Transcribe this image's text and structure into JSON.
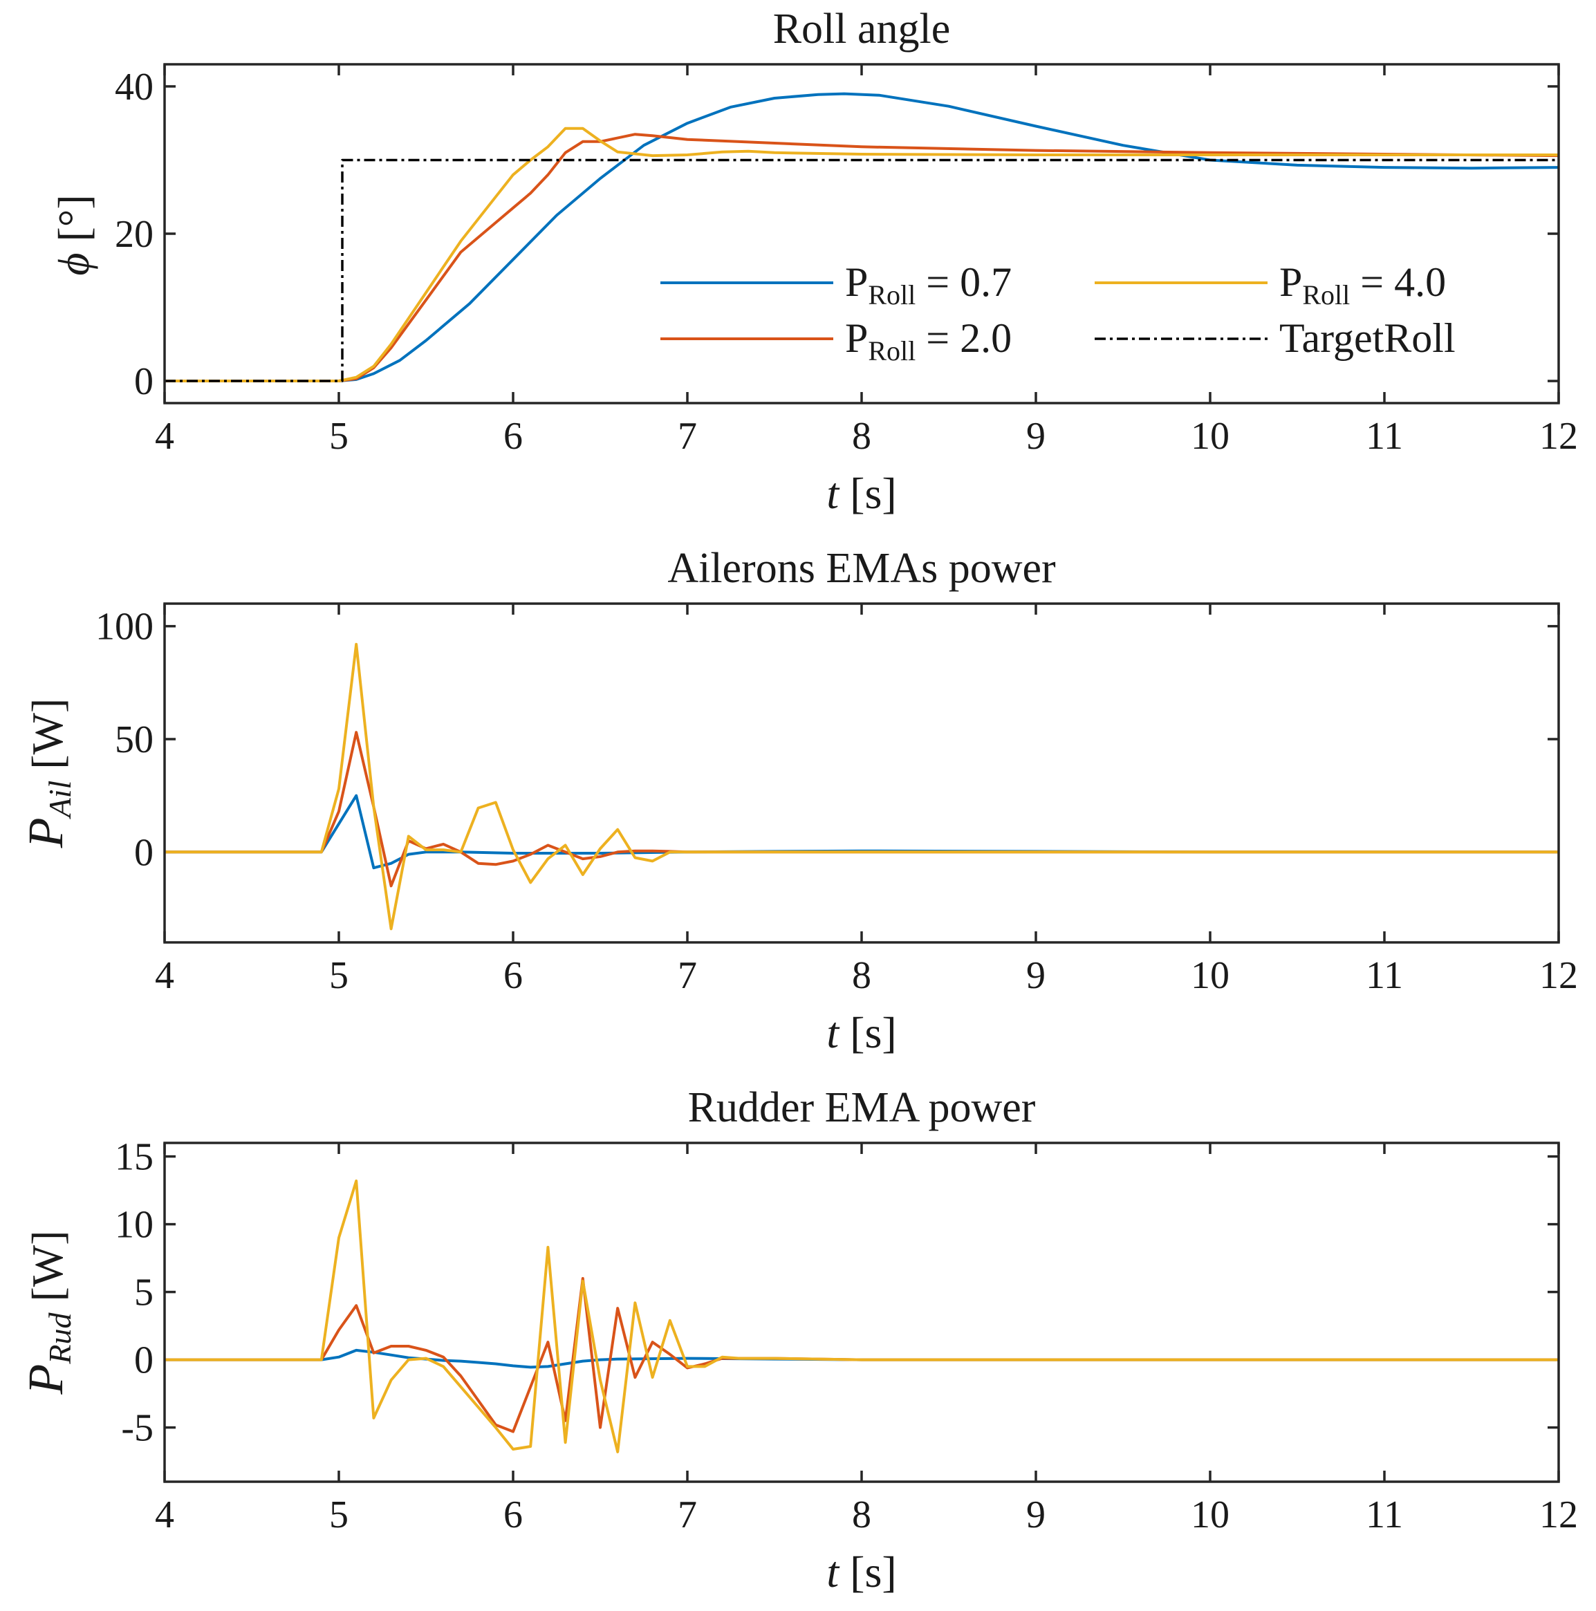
{
  "chart_data": [
    {
      "type": "line",
      "title": "Roll angle",
      "xlabel": "t [s]",
      "ylabel": "ϕ [°]",
      "xlim": [
        4,
        12
      ],
      "ylim": [
        -3,
        43
      ],
      "xticks": [
        4,
        5,
        6,
        7,
        8,
        9,
        10,
        11,
        12
      ],
      "yticks": [
        0,
        20,
        40
      ],
      "legend": {
        "placement": "lower-right",
        "columns": 2,
        "entries": [
          "P_Roll = 0.7",
          "P_Roll = 4.0",
          "P_Roll = 2.0",
          "TargetRoll"
        ]
      },
      "series": [
        {
          "name": "P_Roll = 0.7",
          "color": "#0072BD",
          "style": "solid",
          "x": [
            4,
            4.9,
            5.0,
            5.1,
            5.2,
            5.35,
            5.5,
            5.75,
            6.0,
            6.25,
            6.5,
            6.75,
            7.0,
            7.25,
            7.5,
            7.75,
            7.9,
            8.1,
            8.5,
            9.0,
            9.5,
            10.0,
            10.5,
            11.0,
            11.5,
            12.0
          ],
          "y": [
            0,
            0,
            0,
            0.2,
            1.0,
            2.8,
            5.5,
            10.5,
            16.5,
            22.5,
            27.5,
            32.0,
            35.0,
            37.2,
            38.4,
            38.9,
            39.0,
            38.8,
            37.3,
            34.6,
            32.0,
            30.0,
            29.3,
            29.0,
            28.9,
            29.0
          ]
        },
        {
          "name": "P_Roll = 2.0",
          "color": "#D95319",
          "style": "solid",
          "x": [
            4,
            4.9,
            5.0,
            5.1,
            5.2,
            5.3,
            5.5,
            5.7,
            5.9,
            6.0,
            6.1,
            6.2,
            6.3,
            6.4,
            6.5,
            6.7,
            6.8,
            7.0,
            7.5,
            8.0,
            9.0,
            10.0,
            11.0,
            12.0
          ],
          "y": [
            0,
            0,
            0,
            0.3,
            1.8,
            4.5,
            11.0,
            17.5,
            21.5,
            23.5,
            25.5,
            28.0,
            31.0,
            32.5,
            32.5,
            33.5,
            33.3,
            32.8,
            32.3,
            31.8,
            31.3,
            31.0,
            30.8,
            30.6
          ]
        },
        {
          "name": "P_Roll = 4.0",
          "color": "#EDB120",
          "style": "solid",
          "x": [
            4,
            4.9,
            5.0,
            5.1,
            5.2,
            5.3,
            5.5,
            5.7,
            5.9,
            6.0,
            6.1,
            6.2,
            6.3,
            6.4,
            6.5,
            6.6,
            6.8,
            7.0,
            7.2,
            7.35,
            7.5,
            8.0,
            9.0,
            10.0,
            11.0,
            12.0
          ],
          "y": [
            0,
            0,
            0,
            0.5,
            2.0,
            5.0,
            12.0,
            19.0,
            25.0,
            28.0,
            30.0,
            31.8,
            34.3,
            34.3,
            32.6,
            31.1,
            30.6,
            30.7,
            31.1,
            31.2,
            31.0,
            30.8,
            30.7,
            30.7,
            30.7,
            30.7
          ]
        },
        {
          "name": "TargetRoll",
          "color": "#000000",
          "style": "dashdot",
          "x": [
            4,
            5.02,
            5.02,
            12
          ],
          "y": [
            0,
            0,
            30,
            30
          ]
        }
      ]
    },
    {
      "type": "line",
      "title": "Ailerons EMAs power",
      "xlabel": "t [s]",
      "ylabel": "P_Ail [W]",
      "xlim": [
        4,
        12
      ],
      "ylim": [
        -40,
        110
      ],
      "xticks": [
        4,
        5,
        6,
        7,
        8,
        9,
        10,
        11,
        12
      ],
      "yticks": [
        0,
        50,
        100
      ],
      "series": [
        {
          "name": "P_Roll = 0.7",
          "color": "#0072BD",
          "style": "solid",
          "x": [
            4,
            4.9,
            5.1,
            5.2,
            5.3,
            5.4,
            5.5,
            5.7,
            6.0,
            6.5,
            7.0,
            7.5,
            8.0,
            9.0,
            10.0,
            12.0
          ],
          "y": [
            0,
            0,
            25,
            -7,
            -5,
            -1,
            0,
            0,
            -0.5,
            -0.5,
            0,
            0.3,
            0.5,
            0.3,
            0,
            0
          ]
        },
        {
          "name": "P_Roll = 2.0",
          "color": "#D95319",
          "style": "solid",
          "x": [
            4,
            4.9,
            5.0,
            5.1,
            5.2,
            5.3,
            5.4,
            5.5,
            5.6,
            5.7,
            5.8,
            5.9,
            6.0,
            6.1,
            6.2,
            6.3,
            6.4,
            6.5,
            6.6,
            6.7,
            6.8,
            6.9,
            7.0,
            7.5,
            12.0
          ],
          "y": [
            0,
            0,
            18,
            53,
            20,
            -15,
            5,
            1.5,
            3.5,
            0,
            -5,
            -5.5,
            -4,
            -1,
            3,
            0,
            -3,
            -2,
            0,
            0.5,
            0.5,
            0.3,
            0,
            0,
            0
          ]
        },
        {
          "name": "P_Roll = 4.0",
          "color": "#EDB120",
          "style": "solid",
          "x": [
            4,
            4.9,
            5.0,
            5.1,
            5.2,
            5.3,
            5.4,
            5.5,
            5.6,
            5.7,
            5.8,
            5.9,
            6.0,
            6.1,
            6.2,
            6.3,
            6.4,
            6.5,
            6.6,
            6.7,
            6.8,
            6.9,
            7.0,
            7.5,
            12.0
          ],
          "y": [
            0,
            0,
            28,
            92,
            20,
            -34,
            7,
            1,
            1,
            0,
            19.5,
            22,
            1,
            -13.5,
            -3,
            3,
            -10,
            1.5,
            10,
            -2.5,
            -4,
            0,
            0,
            0,
            0
          ]
        }
      ]
    },
    {
      "type": "line",
      "title": "Rudder EMA power",
      "xlabel": "t [s]",
      "ylabel": "P_Rud [W]",
      "xlim": [
        4,
        12
      ],
      "ylim": [
        -9,
        16
      ],
      "xticks": [
        4,
        5,
        6,
        7,
        8,
        9,
        10,
        11,
        12
      ],
      "yticks": [
        -5,
        0,
        5,
        10,
        15
      ],
      "series": [
        {
          "name": "P_Roll = 0.7",
          "color": "#0072BD",
          "style": "solid",
          "x": [
            4,
            4.9,
            5.0,
            5.1,
            5.2,
            5.3,
            5.4,
            5.5,
            5.6,
            5.7,
            5.8,
            5.9,
            6.0,
            6.1,
            6.2,
            6.3,
            6.4,
            6.5,
            6.6,
            7.0,
            7.5,
            8.0,
            12.0
          ],
          "y": [
            0,
            0,
            0.2,
            0.7,
            0.55,
            0.35,
            0.15,
            0.05,
            -0.05,
            -0.1,
            -0.2,
            -0.3,
            -0.45,
            -0.55,
            -0.5,
            -0.3,
            -0.1,
            0,
            0.05,
            0.1,
            0.05,
            0,
            0
          ]
        },
        {
          "name": "P_Roll = 2.0",
          "color": "#D95319",
          "style": "solid",
          "x": [
            4,
            4.9,
            5.0,
            5.1,
            5.2,
            5.3,
            5.4,
            5.5,
            5.6,
            5.7,
            5.8,
            5.9,
            6.0,
            6.1,
            6.2,
            6.3,
            6.4,
            6.5,
            6.6,
            6.7,
            6.8,
            6.9,
            7.0,
            7.1,
            7.2,
            7.5,
            8.0,
            12.0
          ],
          "y": [
            0,
            0,
            2.2,
            4.0,
            0.5,
            1.0,
            1.0,
            0.7,
            0.2,
            -1.2,
            -3.0,
            -4.8,
            -5.3,
            -2.0,
            1.3,
            -4.5,
            6.0,
            -5.0,
            3.8,
            -1.3,
            1.3,
            0.4,
            -0.6,
            -0.3,
            0.1,
            0.1,
            0,
            0
          ]
        },
        {
          "name": "P_Roll = 4.0",
          "color": "#EDB120",
          "style": "solid",
          "x": [
            4,
            4.9,
            5.0,
            5.1,
            5.2,
            5.3,
            5.4,
            5.5,
            5.6,
            5.7,
            5.8,
            5.9,
            6.0,
            6.1,
            6.2,
            6.3,
            6.4,
            6.5,
            6.6,
            6.7,
            6.8,
            6.9,
            7.0,
            7.1,
            7.2,
            7.3,
            7.5,
            8.0,
            12.0
          ],
          "y": [
            0,
            0,
            9.0,
            13.2,
            -4.3,
            -1.5,
            0,
            0.1,
            -0.5,
            -2.0,
            -3.5,
            -5.0,
            -6.6,
            -6.4,
            8.3,
            -6.1,
            5.8,
            -1.5,
            -6.8,
            4.2,
            -1.3,
            2.9,
            -0.5,
            -0.5,
            0.2,
            0.1,
            0.1,
            0,
            0
          ]
        }
      ]
    }
  ]
}
